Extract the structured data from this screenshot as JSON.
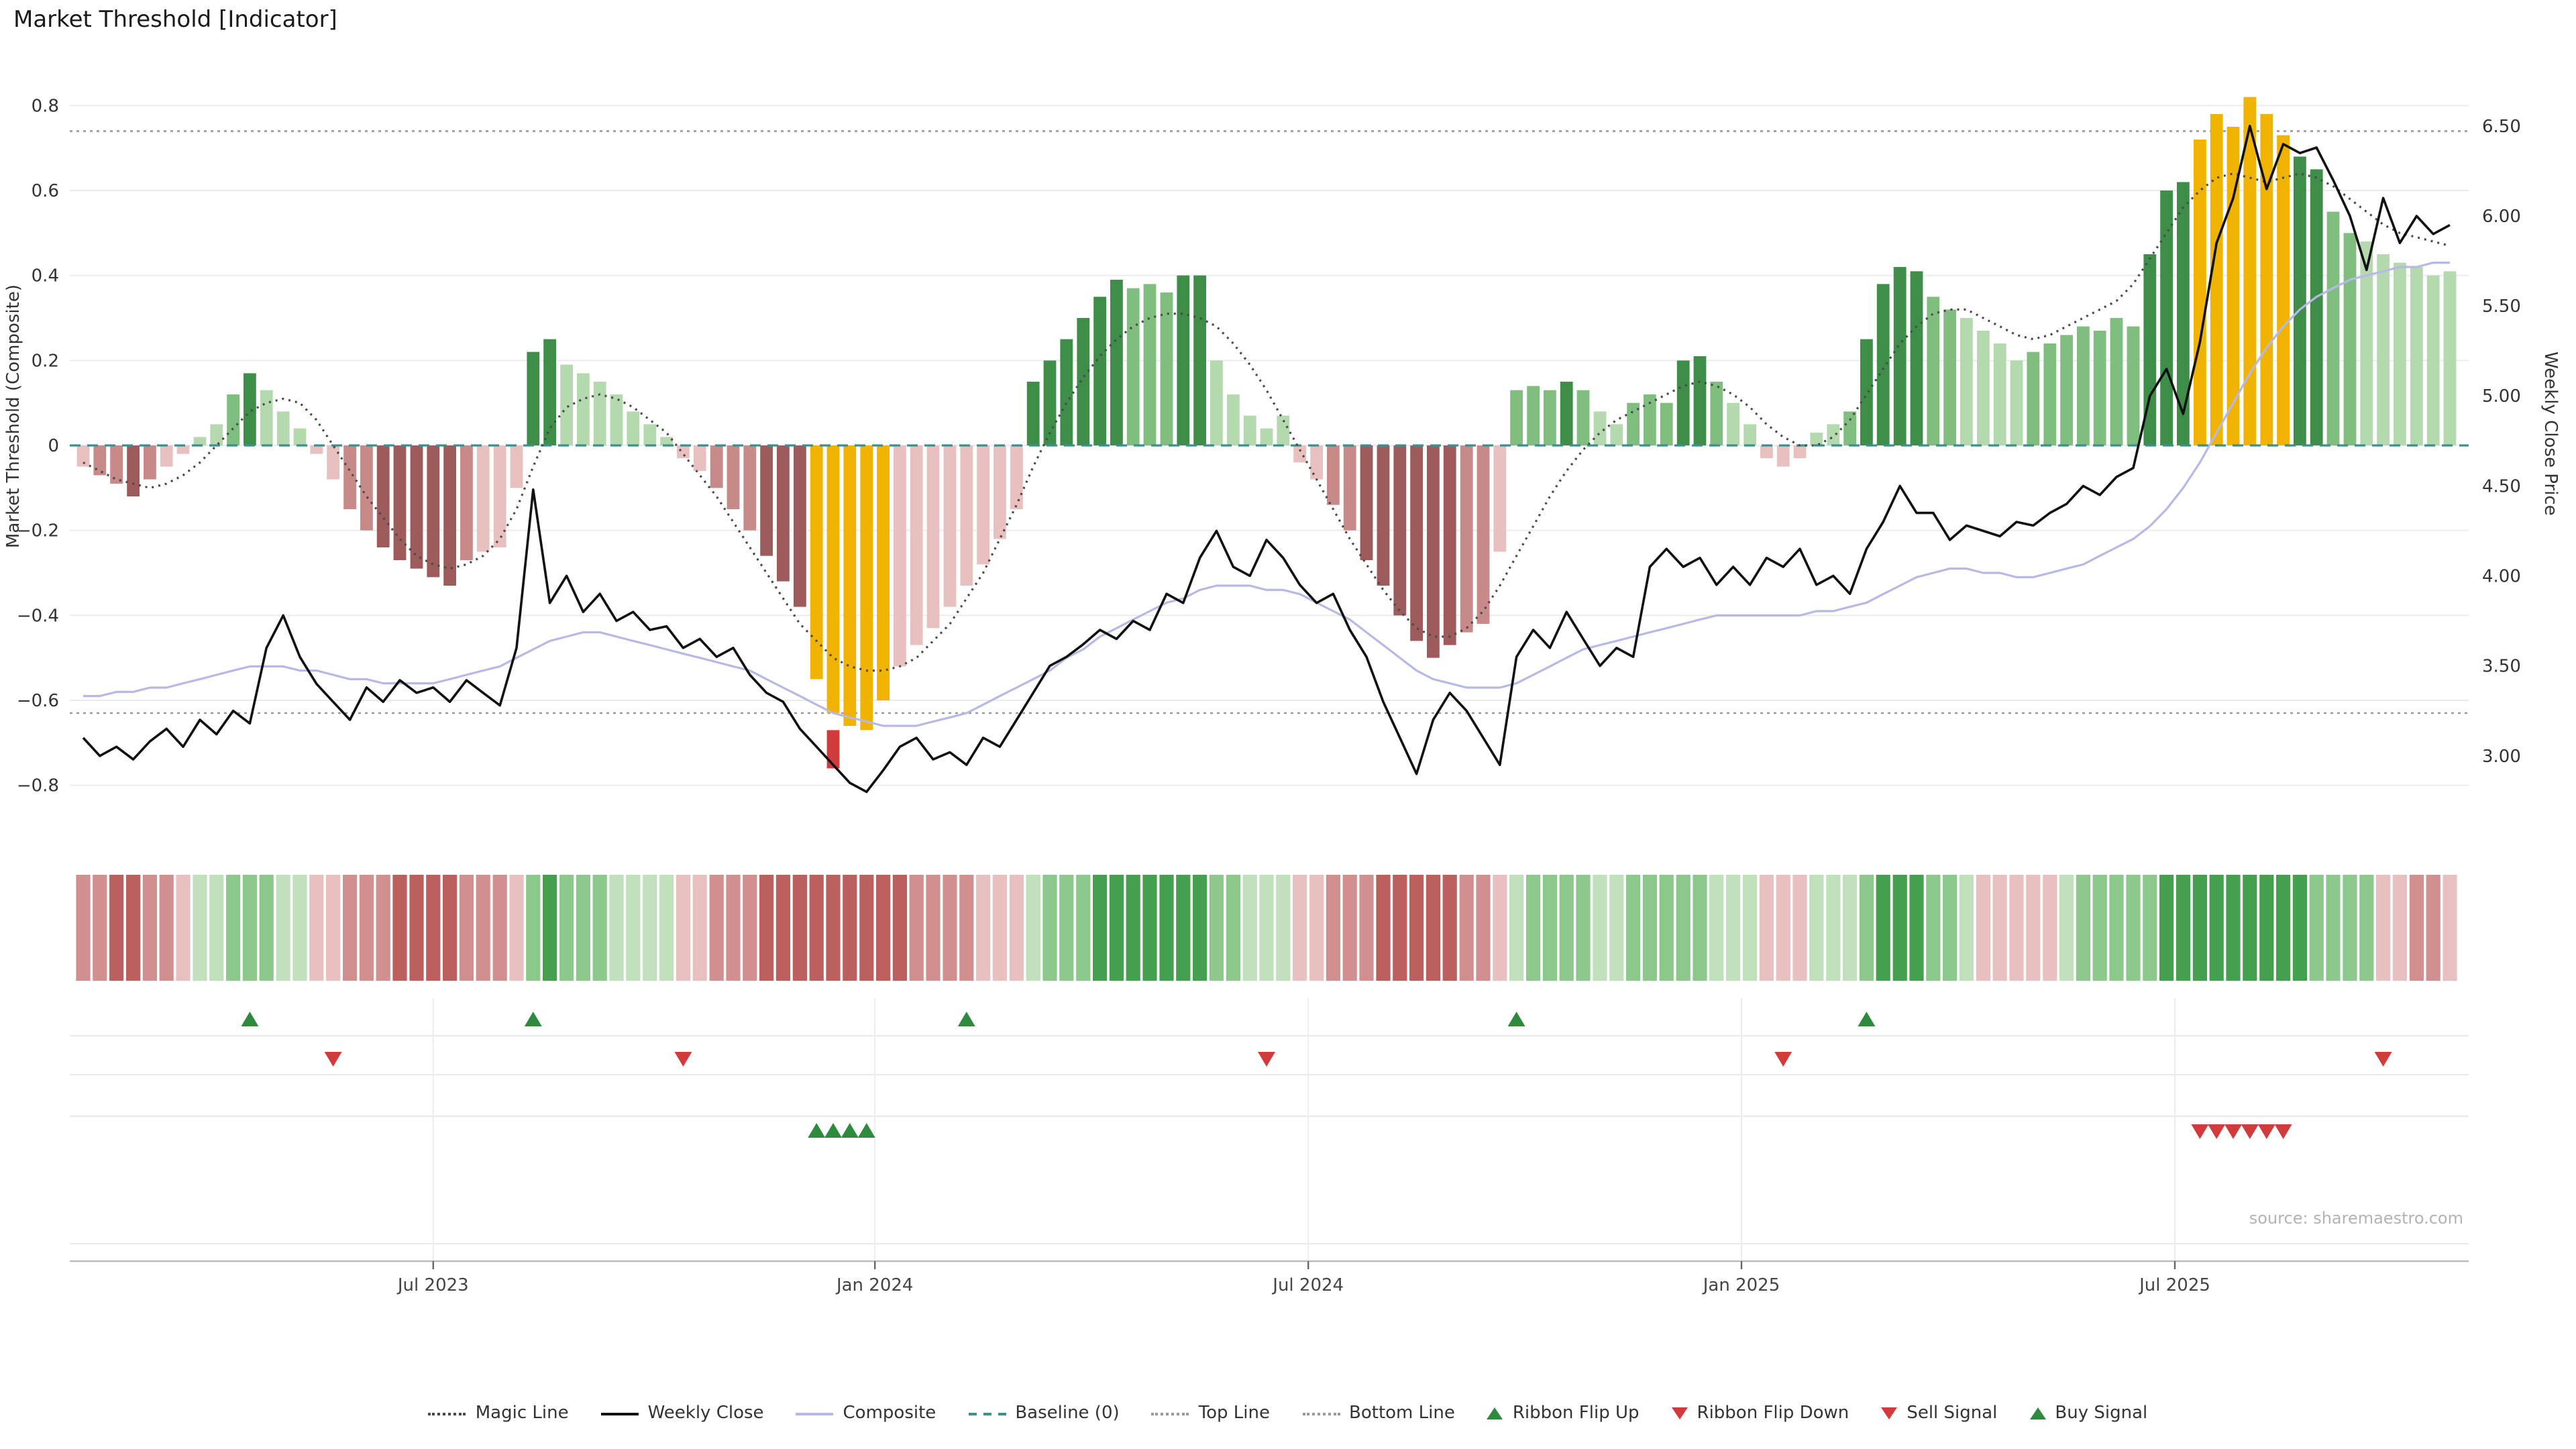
{
  "title": "Market Threshold [Indicator]",
  "source": "source: sharemaestro.com",
  "colors": {
    "bars": {
      "dg": "#3e8e49",
      "mg": "#7fbe7f",
      "lg": "#b5d9ae",
      "dr": "#9e5b5b",
      "mr": "#c88989",
      "lr": "#e8c0c0",
      "gold": "#f0b400"
    },
    "ribbon": {
      "r1": "#e9c0c0",
      "r2": "#d28f8f",
      "r3": "#bb5f5f",
      "g1": "#bfe0bb",
      "g2": "#8cc78c",
      "g3": "#44a04f"
    },
    "weekly_close": "#111111",
    "composite": "#b8b8e8",
    "magic": "#4a4a4a",
    "baseline": "#3d8f8f",
    "top_bottom": "#999999",
    "flip_up": "#2e8b3d",
    "flip_down": "#d23b3b",
    "gridline": "#ebebeb"
  },
  "chart_data": {
    "type": "bar+line",
    "x_unit": "weeks",
    "n_weeks": 143,
    "x_ticks": [
      {
        "week": 21,
        "label": "Jul 2023"
      },
      {
        "week": 47.5,
        "label": "Jan 2024"
      },
      {
        "week": 73.5,
        "label": "Jul 2024"
      },
      {
        "week": 99.5,
        "label": "Jan 2025"
      },
      {
        "week": 125.5,
        "label": "Jul 2025"
      }
    ],
    "left_axis": {
      "label": "Market Threshold (Composite)",
      "ticks": [
        "0.8",
        "0.6",
        "0.4",
        "0.2",
        "0",
        "−0.2",
        "−0.4",
        "−0.6",
        "−0.8"
      ],
      "lim": [
        -0.9,
        0.9
      ]
    },
    "right_axis": {
      "label": "Weekly Close Price",
      "ticks": [
        "6.50",
        "6.00",
        "5.50",
        "5.00",
        "4.50",
        "4.00",
        "3.50",
        "3.00"
      ],
      "lim": [
        2.6,
        6.85
      ]
    },
    "top_line": 0.74,
    "bottom_line": -0.63,
    "baseline": 0,
    "threshold_bars": {
      "values": [
        -0.05,
        -0.07,
        -0.09,
        -0.12,
        -0.08,
        -0.05,
        -0.02,
        0.02,
        0.05,
        0.12,
        0.17,
        0.13,
        0.08,
        0.04,
        -0.02,
        -0.08,
        -0.15,
        -0.2,
        -0.24,
        -0.27,
        -0.29,
        -0.31,
        -0.33,
        -0.27,
        -0.25,
        -0.24,
        -0.1,
        0.22,
        0.25,
        0.19,
        0.17,
        0.15,
        0.12,
        0.08,
        0.05,
        0.02,
        -0.03,
        -0.06,
        -0.1,
        -0.15,
        -0.2,
        -0.26,
        -0.32,
        -0.38,
        -0.55,
        -0.63,
        -0.66,
        -0.67,
        -0.6,
        -0.52,
        -0.47,
        -0.43,
        -0.38,
        -0.33,
        -0.28,
        -0.22,
        -0.15,
        0.15,
        0.2,
        0.25,
        0.3,
        0.35,
        0.39,
        0.37,
        0.38,
        0.36,
        0.4,
        0.4,
        0.2,
        0.12,
        0.07,
        0.04,
        0.07,
        -0.04,
        -0.08,
        -0.14,
        -0.2,
        -0.27,
        -0.33,
        -0.4,
        -0.46,
        -0.5,
        -0.47,
        -0.44,
        -0.42,
        -0.25,
        0.13,
        0.14,
        0.13,
        0.15,
        0.13,
        0.08,
        0.05,
        0.1,
        0.12,
        0.1,
        0.2,
        0.21,
        0.15,
        0.1,
        0.05,
        -0.03,
        -0.05,
        -0.03,
        0.03,
        0.05,
        0.08,
        0.25,
        0.38,
        0.42,
        0.41,
        0.35,
        0.32,
        0.3,
        0.27,
        0.24,
        0.2,
        0.22,
        0.24,
        0.26,
        0.28,
        0.27,
        0.3,
        0.28,
        0.45,
        0.6,
        0.62,
        0.72,
        0.78,
        0.75,
        0.82,
        0.78,
        0.73,
        0.68,
        0.65,
        0.55,
        0.5,
        0.48,
        0.45,
        0.43,
        0.42,
        0.4,
        0.41
      ],
      "colors": [
        "lr",
        "mr",
        "mr",
        "dr",
        "mr",
        "lr",
        "lr",
        "lg",
        "lg",
        "mg",
        "dg",
        "lg",
        "lg",
        "lg",
        "lr",
        "lr",
        "mr",
        "mr",
        "dr",
        "dr",
        "dr",
        "dr",
        "dr",
        "mr",
        "lr",
        "lr",
        "lr",
        "dg",
        "dg",
        "lg",
        "lg",
        "lg",
        "lg",
        "lg",
        "lg",
        "lg",
        "lr",
        "lr",
        "mr",
        "mr",
        "mr",
        "dr",
        "dr",
        "dr",
        "gold",
        "gold",
        "gold",
        "gold",
        "gold",
        "lr",
        "lr",
        "lr",
        "lr",
        "lr",
        "lr",
        "lr",
        "lr",
        "dg",
        "dg",
        "dg",
        "dg",
        "dg",
        "dg",
        "mg",
        "mg",
        "mg",
        "dg",
        "dg",
        "lg",
        "lg",
        "lg",
        "lg",
        "lg",
        "lr",
        "lr",
        "mr",
        "mr",
        "dr",
        "dr",
        "dr",
        "dr",
        "dr",
        "dr",
        "mr",
        "mr",
        "lr",
        "mg",
        "mg",
        "mg",
        "dg",
        "mg",
        "lg",
        "lg",
        "mg",
        "mg",
        "mg",
        "dg",
        "dg",
        "mg",
        "lg",
        "lg",
        "lr",
        "lr",
        "lr",
        "lg",
        "lg",
        "mg",
        "dg",
        "dg",
        "dg",
        "dg",
        "mg",
        "mg",
        "lg",
        "lg",
        "lg",
        "lg",
        "mg",
        "mg",
        "mg",
        "mg",
        "mg",
        "mg",
        "mg",
        "dg",
        "dg",
        "dg",
        "gold",
        "gold",
        "gold",
        "gold",
        "gold",
        "gold",
        "dg",
        "dg",
        "mg",
        "mg",
        "lg",
        "lg",
        "lg",
        "lg",
        "lg",
        "lg"
      ]
    },
    "gold_bar_red_tip": {
      "week": 45,
      "from": -0.67,
      "to": -0.76
    },
    "weekly_close": [
      3.1,
      3.0,
      3.05,
      2.98,
      3.08,
      3.15,
      3.05,
      3.2,
      3.12,
      3.25,
      3.18,
      3.6,
      3.78,
      3.55,
      3.4,
      3.3,
      3.2,
      3.38,
      3.3,
      3.42,
      3.35,
      3.38,
      3.3,
      3.42,
      3.35,
      3.28,
      3.6,
      4.48,
      3.85,
      4.0,
      3.8,
      3.9,
      3.75,
      3.8,
      3.7,
      3.72,
      3.6,
      3.65,
      3.55,
      3.6,
      3.45,
      3.35,
      3.3,
      3.15,
      3.05,
      2.95,
      2.85,
      2.8,
      2.92,
      3.05,
      3.1,
      2.98,
      3.02,
      2.95,
      3.1,
      3.05,
      3.2,
      3.35,
      3.5,
      3.55,
      3.62,
      3.7,
      3.65,
      3.75,
      3.7,
      3.9,
      3.85,
      4.1,
      4.25,
      4.05,
      4.0,
      4.2,
      4.1,
      3.95,
      3.85,
      3.9,
      3.7,
      3.55,
      3.3,
      3.1,
      2.9,
      3.2,
      3.35,
      3.25,
      3.1,
      2.95,
      3.55,
      3.7,
      3.6,
      3.8,
      3.65,
      3.5,
      3.6,
      3.55,
      4.05,
      4.15,
      4.05,
      4.1,
      3.95,
      4.05,
      3.95,
      4.1,
      4.05,
      4.15,
      3.95,
      4.0,
      3.9,
      4.15,
      4.3,
      4.5,
      4.35,
      4.35,
      4.2,
      4.28,
      4.25,
      4.22,
      4.3,
      4.28,
      4.35,
      4.4,
      4.5,
      4.45,
      4.55,
      4.6,
      5.0,
      5.15,
      4.9,
      5.3,
      5.85,
      6.1,
      6.5,
      6.15,
      6.4,
      6.35,
      6.38,
      6.2,
      6.0,
      5.7,
      6.1,
      5.85,
      6.0,
      5.9,
      5.95
    ],
    "composite": [
      -0.59,
      -0.59,
      -0.58,
      -0.58,
      -0.57,
      -0.57,
      -0.56,
      -0.55,
      -0.54,
      -0.53,
      -0.52,
      -0.52,
      -0.52,
      -0.53,
      -0.53,
      -0.54,
      -0.55,
      -0.55,
      -0.56,
      -0.56,
      -0.56,
      -0.56,
      -0.55,
      -0.54,
      -0.53,
      -0.52,
      -0.5,
      -0.48,
      -0.46,
      -0.45,
      -0.44,
      -0.44,
      -0.45,
      -0.46,
      -0.47,
      -0.48,
      -0.49,
      -0.5,
      -0.51,
      -0.52,
      -0.53,
      -0.55,
      -0.57,
      -0.59,
      -0.61,
      -0.63,
      -0.64,
      -0.65,
      -0.66,
      -0.66,
      -0.66,
      -0.65,
      -0.64,
      -0.63,
      -0.61,
      -0.59,
      -0.57,
      -0.55,
      -0.53,
      -0.5,
      -0.48,
      -0.45,
      -0.43,
      -0.41,
      -0.39,
      -0.37,
      -0.36,
      -0.34,
      -0.33,
      -0.33,
      -0.33,
      -0.34,
      -0.34,
      -0.35,
      -0.37,
      -0.39,
      -0.41,
      -0.44,
      -0.47,
      -0.5,
      -0.53,
      -0.55,
      -0.56,
      -0.57,
      -0.57,
      -0.57,
      -0.56,
      -0.54,
      -0.52,
      -0.5,
      -0.48,
      -0.47,
      -0.46,
      -0.45,
      -0.44,
      -0.43,
      -0.42,
      -0.41,
      -0.4,
      -0.4,
      -0.4,
      -0.4,
      -0.4,
      -0.4,
      -0.39,
      -0.39,
      -0.38,
      -0.37,
      -0.35,
      -0.33,
      -0.31,
      -0.3,
      -0.29,
      -0.29,
      -0.3,
      -0.3,
      -0.31,
      -0.31,
      -0.3,
      -0.29,
      -0.28,
      -0.26,
      -0.24,
      -0.22,
      -0.19,
      -0.15,
      -0.1,
      -0.04,
      0.03,
      0.1,
      0.17,
      0.23,
      0.28,
      0.32,
      0.35,
      0.37,
      0.39,
      0.4,
      0.41,
      0.42,
      0.42,
      0.43,
      0.43
    ],
    "magic_line": [
      -0.04,
      -0.06,
      -0.08,
      -0.09,
      -0.1,
      -0.09,
      -0.07,
      -0.04,
      0.0,
      0.04,
      0.08,
      0.1,
      0.11,
      0.1,
      0.06,
      0.0,
      -0.06,
      -0.12,
      -0.17,
      -0.22,
      -0.26,
      -0.28,
      -0.29,
      -0.28,
      -0.26,
      -0.22,
      -0.15,
      -0.05,
      0.04,
      0.09,
      0.11,
      0.12,
      0.11,
      0.09,
      0.06,
      0.03,
      -0.02,
      -0.07,
      -0.12,
      -0.18,
      -0.24,
      -0.3,
      -0.36,
      -0.42,
      -0.46,
      -0.5,
      -0.52,
      -0.53,
      -0.53,
      -0.52,
      -0.5,
      -0.46,
      -0.42,
      -0.36,
      -0.3,
      -0.22,
      -0.14,
      -0.05,
      0.03,
      0.1,
      0.16,
      0.21,
      0.25,
      0.28,
      0.3,
      0.31,
      0.31,
      0.3,
      0.28,
      0.24,
      0.19,
      0.13,
      0.06,
      -0.01,
      -0.08,
      -0.15,
      -0.22,
      -0.28,
      -0.34,
      -0.39,
      -0.43,
      -0.45,
      -0.45,
      -0.43,
      -0.39,
      -0.33,
      -0.26,
      -0.19,
      -0.12,
      -0.06,
      -0.01,
      0.03,
      0.06,
      0.08,
      0.1,
      0.12,
      0.14,
      0.15,
      0.14,
      0.12,
      0.09,
      0.05,
      0.02,
      0.0,
      0.0,
      0.02,
      0.06,
      0.12,
      0.18,
      0.24,
      0.28,
      0.31,
      0.32,
      0.32,
      0.3,
      0.28,
      0.26,
      0.25,
      0.26,
      0.28,
      0.3,
      0.32,
      0.34,
      0.38,
      0.44,
      0.5,
      0.56,
      0.6,
      0.63,
      0.64,
      0.63,
      0.62,
      0.63,
      0.64,
      0.63,
      0.61,
      0.58,
      0.55,
      0.52,
      0.5,
      0.49,
      0.48,
      0.47
    ],
    "ribbon": [
      "r2",
      "r2",
      "r3",
      "r3",
      "r2",
      "r2",
      "r1",
      "g1",
      "g1",
      "g2",
      "g2",
      "g2",
      "g1",
      "g1",
      "r1",
      "r1",
      "r2",
      "r2",
      "r2",
      "r3",
      "r3",
      "r3",
      "r3",
      "r2",
      "r2",
      "r2",
      "r1",
      "g2",
      "g3",
      "g2",
      "g2",
      "g2",
      "g1",
      "g1",
      "g1",
      "g1",
      "r1",
      "r1",
      "r2",
      "r2",
      "r2",
      "r3",
      "r3",
      "r3",
      "r3",
      "r3",
      "r3",
      "r3",
      "r3",
      "r3",
      "r2",
      "r2",
      "r2",
      "r2",
      "r1",
      "r1",
      "r1",
      "g1",
      "g2",
      "g2",
      "g2",
      "g3",
      "g3",
      "g3",
      "g3",
      "g3",
      "g3",
      "g3",
      "g2",
      "g2",
      "g1",
      "g1",
      "g1",
      "r1",
      "r1",
      "r2",
      "r2",
      "r2",
      "r3",
      "r3",
      "r3",
      "r3",
      "r3",
      "r2",
      "r2",
      "r1",
      "g1",
      "g2",
      "g2",
      "g2",
      "g2",
      "g1",
      "g1",
      "g2",
      "g2",
      "g2",
      "g2",
      "g2",
      "g1",
      "g1",
      "g1",
      "r1",
      "r1",
      "r1",
      "g1",
      "g1",
      "g1",
      "g2",
      "g3",
      "g3",
      "g3",
      "g2",
      "g2",
      "g1",
      "r1",
      "r1",
      "r1",
      "r1",
      "r1",
      "g1",
      "g2",
      "g2",
      "g2",
      "g2",
      "g2",
      "g3",
      "g3",
      "g3",
      "g3",
      "g3",
      "g3",
      "g3",
      "g3",
      "g3",
      "g2",
      "g2",
      "g2",
      "g2",
      "r1",
      "r1",
      "r2",
      "r2",
      "r1"
    ],
    "signals": {
      "ribbon_flip_up_weeks": [
        10,
        27,
        53,
        86,
        107
      ],
      "ribbon_flip_down_weeks": [
        15,
        36,
        71,
        102,
        138
      ],
      "buy_signal_weeks": [
        44,
        45,
        46,
        47
      ],
      "sell_signal_weeks": [
        127,
        128,
        129,
        130,
        131,
        132
      ]
    }
  },
  "legend": {
    "items": [
      {
        "label": "Magic Line",
        "marker": "line",
        "style": "dotted",
        "color": "#4a4a4a"
      },
      {
        "label": "Weekly Close",
        "marker": "line",
        "style": "solid",
        "color": "#111111"
      },
      {
        "label": "Composite",
        "marker": "line",
        "style": "solid",
        "color": "#b8b8e8"
      },
      {
        "label": "Baseline (0)",
        "marker": "line",
        "style": "dashed",
        "color": "#3d8f8f"
      },
      {
        "label": "Top Line",
        "marker": "line",
        "style": "dotted",
        "color": "#999999"
      },
      {
        "label": "Bottom Line",
        "marker": "line",
        "style": "dotted",
        "color": "#999999"
      },
      {
        "label": "Ribbon Flip Up",
        "marker": "triangle-up",
        "color": "#2e8b3d"
      },
      {
        "label": "Ribbon Flip Down",
        "marker": "triangle-down",
        "color": "#d23b3b"
      },
      {
        "label": "Sell Signal",
        "marker": "triangle-down",
        "color": "#d23b3b"
      },
      {
        "label": "Buy Signal",
        "marker": "triangle-up",
        "color": "#2e8b3d"
      }
    ]
  }
}
